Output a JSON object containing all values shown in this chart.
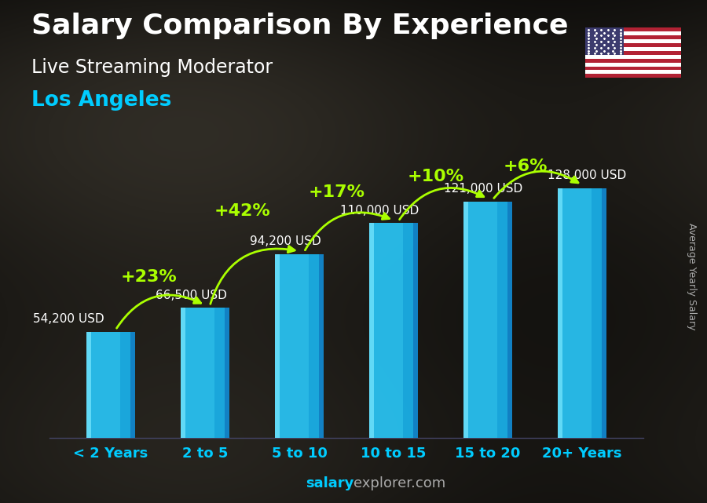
{
  "title": "Salary Comparison By Experience",
  "subtitle": "Live Streaming Moderator",
  "city": "Los Angeles",
  "watermark_salary": "salary",
  "watermark_explorer": "explorer",
  "watermark_com": ".com",
  "ylabel": "Average Yearly Salary",
  "categories": [
    "< 2 Years",
    "2 to 5",
    "5 to 10",
    "10 to 15",
    "15 to 20",
    "20+ Years"
  ],
  "values": [
    54200,
    66500,
    94200,
    110000,
    121000,
    128000
  ],
  "value_labels": [
    "54,200 USD",
    "66,500 USD",
    "94,200 USD",
    "110,000 USD",
    "121,000 USD",
    "128,000 USD"
  ],
  "pct_changes": [
    "+23%",
    "+42%",
    "+17%",
    "+10%",
    "+6%"
  ],
  "bar_face_color": "#29c5f6",
  "bar_left_color": "#1aa0d0",
  "bar_right_color": "#0077aa",
  "bar_top_color": "#55ddff",
  "title_color": "#ffffff",
  "subtitle_color": "#ffffff",
  "city_color": "#00ccff",
  "label_color": "#ffffff",
  "pct_color": "#aaff00",
  "arrow_color": "#aaff00",
  "watermark_color": "#aaaaaa",
  "watermark_highlight": "#00ccff",
  "ylabel_color": "#aaaaaa",
  "xticklabel_color": "#00ccff",
  "title_fontsize": 26,
  "subtitle_fontsize": 17,
  "city_fontsize": 19,
  "label_fontsize": 11,
  "pct_fontsize": 16,
  "cat_fontsize": 13,
  "bar_width": 0.52,
  "ylim": [
    0,
    160000
  ],
  "bg_color": "#2a2a35"
}
